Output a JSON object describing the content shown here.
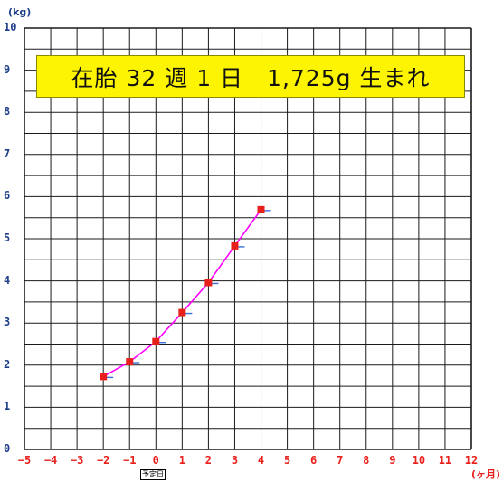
{
  "banner": {
    "text": "在胎 32 週 1 日　1,725g 生まれ",
    "bg": "#fdf401"
  },
  "colors": {
    "y_axis_text": "#1f3f8a",
    "x_axis_text": "#e8201c",
    "line": "#ff00ff",
    "marker": "#e8201c",
    "tick_marker": "#3b6fd8",
    "grid": "#1a1a1a"
  },
  "labels": {
    "y_unit": "(kg)",
    "x_unit": "(ヶ月)",
    "due_date": "予定日"
  },
  "chart_data": {
    "type": "line",
    "title": "",
    "xlabel": "(ヶ月)",
    "ylabel": "(kg)",
    "xlim": [
      -5,
      12
    ],
    "ylim": [
      0,
      10
    ],
    "grid": true,
    "x_ticks": [
      "−5",
      "−4",
      "−3",
      "−2",
      "−1",
      "0",
      "1",
      "2",
      "3",
      "4",
      "5",
      "6",
      "7",
      "8",
      "9",
      "10",
      "11",
      "12"
    ],
    "y_ticks": [
      "0",
      "1",
      "2",
      "3",
      "4",
      "5",
      "6",
      "7",
      "8",
      "9",
      "10"
    ],
    "series": [
      {
        "x": [
          -2,
          -1,
          0,
          1,
          2,
          3,
          4
        ],
        "y": [
          1.73,
          2.08,
          2.56,
          3.25,
          3.96,
          4.83,
          5.69
        ]
      }
    ]
  }
}
